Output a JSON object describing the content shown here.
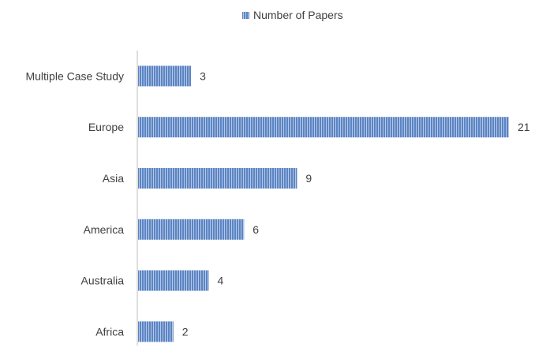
{
  "chart_data": {
    "type": "bar",
    "orientation": "horizontal",
    "categories": [
      "Multiple Case Study",
      "Europe",
      "Asia",
      "America",
      "Australia",
      "Africa"
    ],
    "series": [
      {
        "name": "Number of Papers",
        "values": [
          3,
          21,
          9,
          6,
          4,
          2
        ]
      }
    ],
    "data_labels": [
      "3",
      "21",
      "9",
      "6",
      "4",
      "2"
    ],
    "xlim": [
      0,
      21
    ],
    "legend_position": "top",
    "grid": false,
    "colors": {
      "bar": "#5b84c4",
      "bar_stripe": "#ffffff",
      "axis": "#bfbfbf",
      "text": "#404040"
    }
  }
}
